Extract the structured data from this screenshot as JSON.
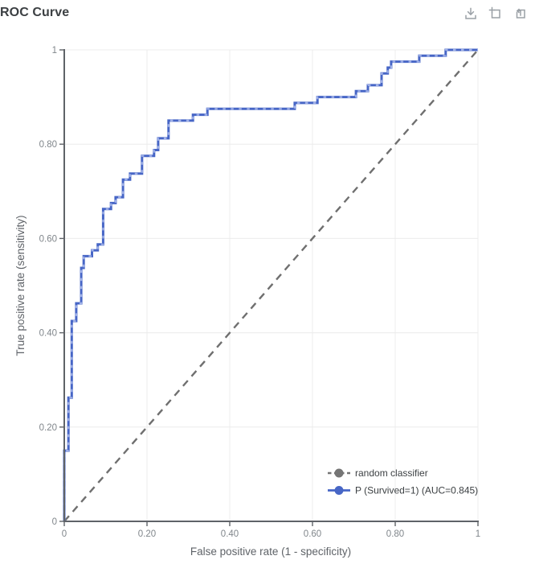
{
  "header": {
    "title": "ROC Curve"
  },
  "toolbar": {
    "icons": [
      "download-icon",
      "add-frame-icon",
      "pop-out-icon"
    ],
    "icon_color": "#9aa0a6"
  },
  "chart_data": {
    "type": "line",
    "title": "ROC Curve",
    "xlabel": "False positive rate (1 - specificity)",
    "ylabel": "True positive rate (sensitivity)",
    "xlim": [
      0,
      1
    ],
    "ylim": [
      0,
      1
    ],
    "grid": true,
    "x_tick_values": [
      0,
      0.2,
      0.4,
      0.6,
      0.8,
      1
    ],
    "x_tick_labels": [
      "0",
      "0.20",
      "0.40",
      "0.60",
      "0.80",
      "1"
    ],
    "y_tick_values": [
      0,
      0.2,
      0.4,
      0.6,
      0.8,
      1
    ],
    "y_tick_labels": [
      "0",
      "0.20",
      "0.40",
      "0.60",
      "0.80",
      "1"
    ],
    "legend_position": "bottom-right",
    "series": [
      {
        "name": "random classifier",
        "type": "line",
        "style": "dashed",
        "color": "#757575",
        "points": [
          [
            0,
            0
          ],
          [
            1,
            1
          ]
        ]
      },
      {
        "name": "P (Survived=1) (AUC=0.845)",
        "type": "step",
        "style": "solid",
        "color": "#4766c6",
        "marker_color": "#9fb0e8",
        "auc": 0.845,
        "points": [
          [
            0,
            0
          ],
          [
            0,
            0.15
          ],
          [
            0.01,
            0.15
          ],
          [
            0.01,
            0.2625
          ],
          [
            0.018,
            0.2625
          ],
          [
            0.018,
            0.425
          ],
          [
            0.029,
            0.425
          ],
          [
            0.029,
            0.4625
          ],
          [
            0.041,
            0.4625
          ],
          [
            0.041,
            0.5375
          ],
          [
            0.047,
            0.5375
          ],
          [
            0.047,
            0.5625
          ],
          [
            0.067,
            0.5625
          ],
          [
            0.067,
            0.575
          ],
          [
            0.081,
            0.575
          ],
          [
            0.081,
            0.5875
          ],
          [
            0.094,
            0.5875
          ],
          [
            0.094,
            0.6625
          ],
          [
            0.113,
            0.6625
          ],
          [
            0.113,
            0.675
          ],
          [
            0.124,
            0.675
          ],
          [
            0.124,
            0.6875
          ],
          [
            0.142,
            0.6875
          ],
          [
            0.142,
            0.725
          ],
          [
            0.159,
            0.725
          ],
          [
            0.159,
            0.7375
          ],
          [
            0.188,
            0.7375
          ],
          [
            0.188,
            0.775
          ],
          [
            0.217,
            0.775
          ],
          [
            0.217,
            0.7875
          ],
          [
            0.227,
            0.7875
          ],
          [
            0.227,
            0.8125
          ],
          [
            0.252,
            0.8125
          ],
          [
            0.252,
            0.85
          ],
          [
            0.311,
            0.85
          ],
          [
            0.311,
            0.8625
          ],
          [
            0.346,
            0.8625
          ],
          [
            0.346,
            0.875
          ],
          [
            0.557,
            0.875
          ],
          [
            0.557,
            0.8875
          ],
          [
            0.612,
            0.8875
          ],
          [
            0.612,
            0.9
          ],
          [
            0.705,
            0.9
          ],
          [
            0.705,
            0.9125
          ],
          [
            0.734,
            0.9125
          ],
          [
            0.734,
            0.925
          ],
          [
            0.767,
            0.925
          ],
          [
            0.767,
            0.95
          ],
          [
            0.782,
            0.95
          ],
          [
            0.782,
            0.9625
          ],
          [
            0.79,
            0.9625
          ],
          [
            0.79,
            0.975
          ],
          [
            0.858,
            0.975
          ],
          [
            0.858,
            0.9875
          ],
          [
            0.922,
            0.9875
          ],
          [
            0.922,
            1
          ],
          [
            1,
            1
          ]
        ]
      }
    ]
  }
}
